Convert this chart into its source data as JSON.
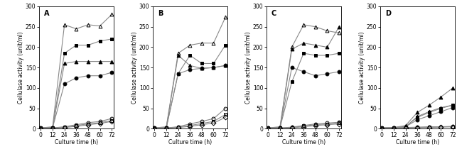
{
  "x": [
    0,
    12,
    24,
    36,
    48,
    60,
    72
  ],
  "panels": [
    {
      "label": "A",
      "series": [
        {
          "values": [
            2,
            5,
            255,
            245,
            255,
            252,
            280
          ],
          "marker": "^",
          "filled": false
        },
        {
          "values": [
            2,
            3,
            185,
            205,
            205,
            215,
            220
          ],
          "marker": "s",
          "filled": true
        },
        {
          "values": [
            2,
            3,
            160,
            165,
            165,
            165,
            165
          ],
          "marker": "^",
          "filled": true
        },
        {
          "values": [
            2,
            3,
            110,
            125,
            130,
            130,
            138
          ],
          "marker": "o",
          "filled": true
        },
        {
          "values": [
            1,
            2,
            5,
            10,
            15,
            18,
            25
          ],
          "marker": "o",
          "filled": false
        },
        {
          "values": [
            1,
            2,
            4,
            8,
            12,
            15,
            20
          ],
          "marker": "s",
          "filled": false
        },
        {
          "values": [
            1,
            1,
            3,
            6,
            10,
            13,
            18
          ],
          "marker": "D",
          "filled": false
        }
      ]
    },
    {
      "label": "B",
      "series": [
        {
          "values": [
            2,
            5,
            185,
            205,
            210,
            210,
            273
          ],
          "marker": "^",
          "filled": false
        },
        {
          "values": [
            2,
            3,
            135,
            180,
            160,
            160,
            205
          ],
          "marker": "s",
          "filled": true
        },
        {
          "values": [
            2,
            3,
            180,
            155,
            148,
            150,
            155
          ],
          "marker": "^",
          "filled": true
        },
        {
          "values": [
            2,
            3,
            135,
            145,
            148,
            150,
            155
          ],
          "marker": "o",
          "filled": true
        },
        {
          "values": [
            1,
            2,
            5,
            12,
            18,
            25,
            50
          ],
          "marker": "o",
          "filled": false
        },
        {
          "values": [
            1,
            2,
            4,
            8,
            13,
            18,
            35
          ],
          "marker": "s",
          "filled": false
        },
        {
          "values": [
            1,
            1,
            3,
            6,
            10,
            14,
            28
          ],
          "marker": "D",
          "filled": false
        }
      ]
    },
    {
      "label": "C",
      "series": [
        {
          "values": [
            2,
            5,
            200,
            255,
            250,
            240,
            235
          ],
          "marker": "^",
          "filled": false
        },
        {
          "values": [
            2,
            3,
            115,
            185,
            180,
            180,
            185
          ],
          "marker": "s",
          "filled": true
        },
        {
          "values": [
            2,
            3,
            195,
            210,
            205,
            200,
            250
          ],
          "marker": "^",
          "filled": true
        },
        {
          "values": [
            2,
            3,
            150,
            140,
            130,
            135,
            140
          ],
          "marker": "o",
          "filled": true
        },
        {
          "values": [
            1,
            2,
            4,
            8,
            12,
            14,
            16
          ],
          "marker": "o",
          "filled": false
        },
        {
          "values": [
            1,
            2,
            3,
            7,
            10,
            12,
            14
          ],
          "marker": "s",
          "filled": false
        },
        {
          "values": [
            1,
            1,
            2,
            5,
            8,
            10,
            12
          ],
          "marker": "D",
          "filled": false
        }
      ]
    },
    {
      "label": "D",
      "series": [
        {
          "values": [
            2,
            3,
            5,
            30,
            42,
            52,
            58
          ],
          "marker": "^",
          "filled": false
        },
        {
          "values": [
            2,
            3,
            5,
            28,
            40,
            50,
            58
          ],
          "marker": "s",
          "filled": true
        },
        {
          "values": [
            2,
            3,
            8,
            40,
            58,
            78,
            100
          ],
          "marker": "^",
          "filled": true
        },
        {
          "values": [
            2,
            3,
            5,
            22,
            32,
            42,
            52
          ],
          "marker": "o",
          "filled": true
        },
        {
          "values": [
            1,
            2,
            3,
            4,
            5,
            5,
            6
          ],
          "marker": "o",
          "filled": false
        },
        {
          "values": [
            1,
            2,
            3,
            3,
            4,
            5,
            5
          ],
          "marker": "s",
          "filled": false
        },
        {
          "values": [
            1,
            1,
            2,
            3,
            3,
            4,
            5
          ],
          "marker": "D",
          "filled": false
        }
      ]
    }
  ],
  "ylim": [
    0,
    300
  ],
  "yticks": [
    0,
    50,
    100,
    150,
    200,
    250,
    300
  ],
  "xticks": [
    0,
    12,
    24,
    36,
    48,
    60,
    72
  ],
  "xlabel": "Culture time (h)",
  "ylabel": "Cellulase activity (unit/ml)",
  "label_fontsize": 5.5,
  "tick_fontsize": 5.5,
  "markersize": 3.5,
  "linewidth": 0.8,
  "linecolor": "#888888",
  "markercolor_filled": "#000000",
  "markercolor_open": "#000000",
  "background": "#ffffff"
}
